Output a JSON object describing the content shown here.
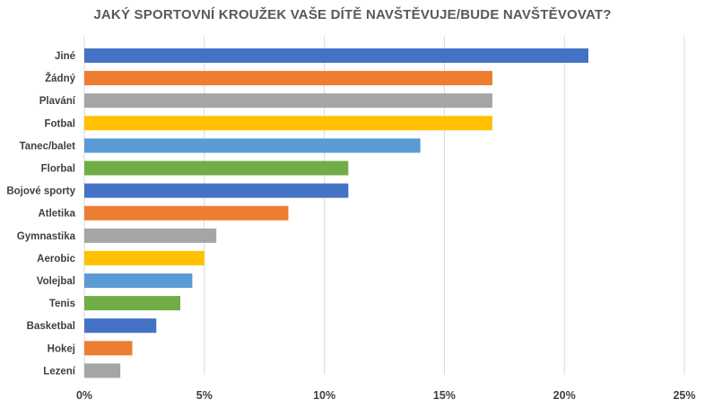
{
  "chart_data": {
    "type": "bar",
    "orientation": "horizontal",
    "title": "JAKÝ SPORTOVNÍ KROUŽEK VAŠE DÍTĚ NAVŠTĚVUJE/BUDE NAVŠTĚVOVAT?",
    "xlabel": "",
    "ylabel": "",
    "xlim": [
      0,
      25
    ],
    "ticks": [
      0,
      5,
      10,
      15,
      20,
      25
    ],
    "tick_labels": [
      "0%",
      "5%",
      "10%",
      "15%",
      "20%",
      "25%"
    ],
    "grid": "vertical",
    "legend": "none",
    "categories": [
      "Jiné",
      "Žádný",
      "Plavání",
      "Fotbal",
      "Tanec/balet",
      "Florbal",
      "Bojové sporty",
      "Atletika",
      "Gymnastika",
      "Aerobic",
      "Volejbal",
      "Tenis",
      "Basketbal",
      "Hokej",
      "Lezení"
    ],
    "values": [
      21,
      17,
      17,
      17,
      14,
      11,
      11,
      8.5,
      5.5,
      5,
      4.5,
      4,
      3,
      2,
      1.5
    ],
    "colors": [
      "#4472C4",
      "#ED7D31",
      "#A5A5A5",
      "#FFC000",
      "#5B9BD5",
      "#70AD47",
      "#4472C4",
      "#ED7D31",
      "#A5A5A5",
      "#FFC000",
      "#5B9BD5",
      "#70AD47",
      "#4472C4",
      "#ED7D31",
      "#A5A5A5"
    ]
  }
}
